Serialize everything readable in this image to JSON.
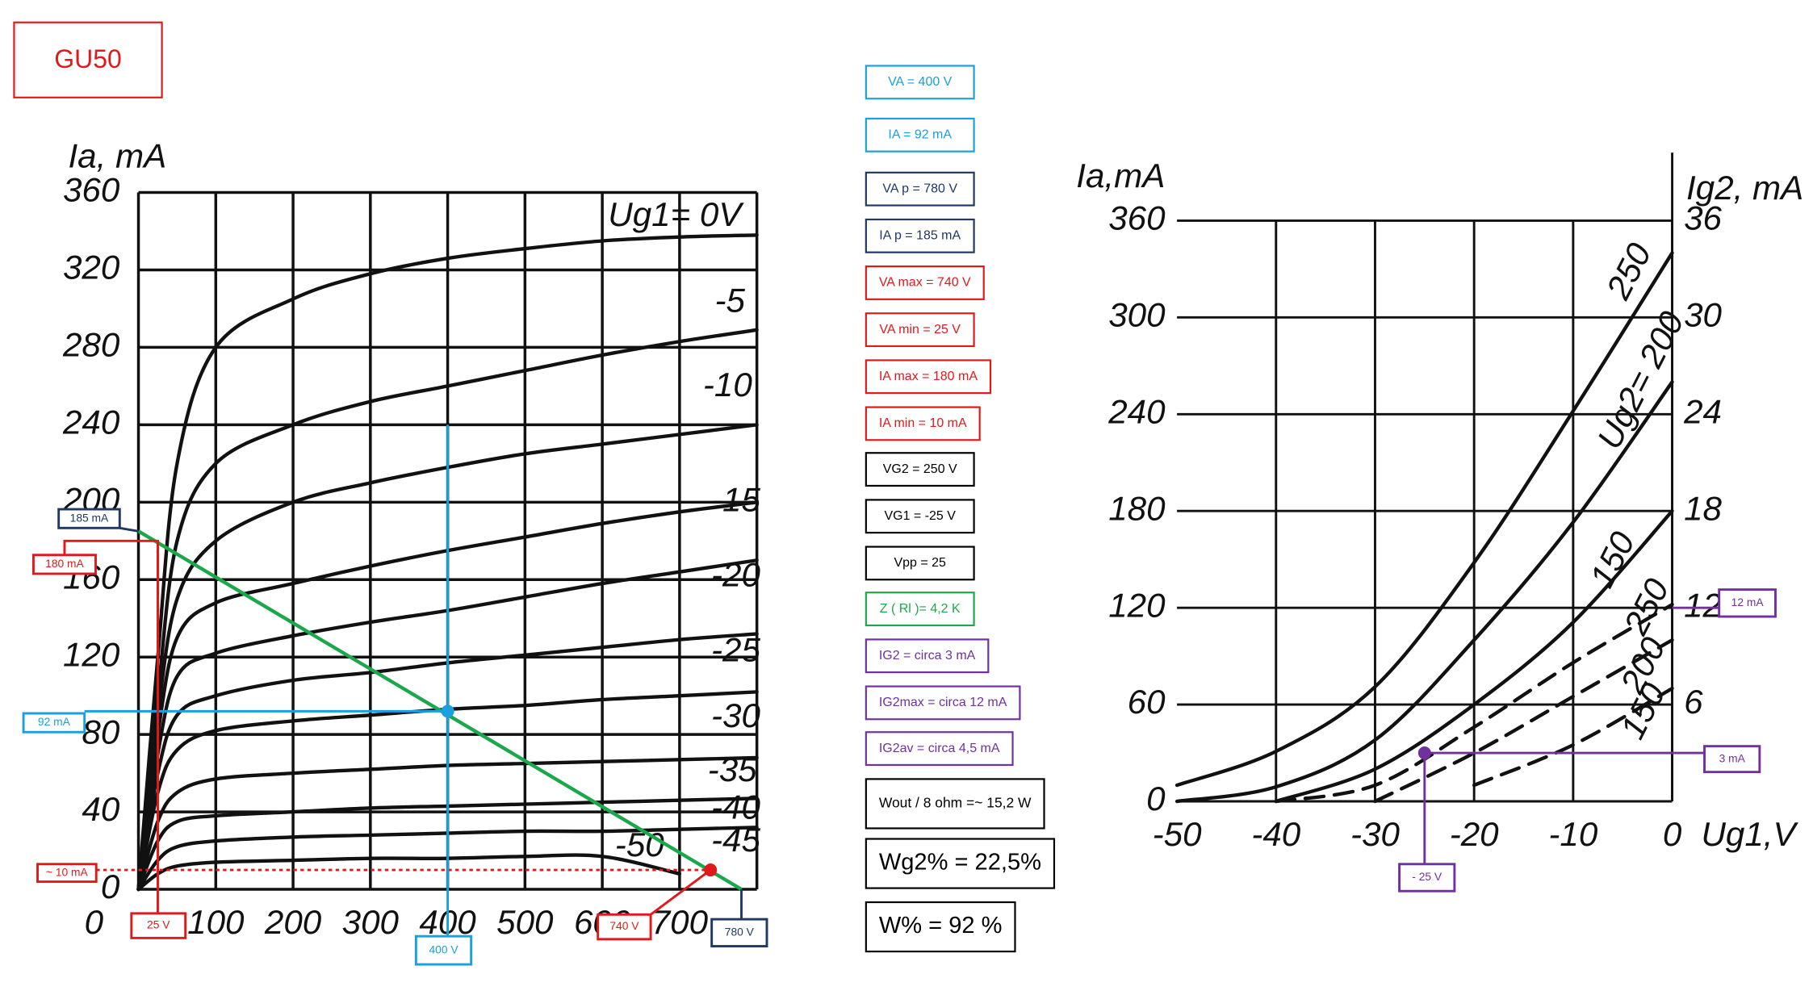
{
  "title": "GU50",
  "notes": [
    {
      "text": "VA = 400 V",
      "color": "#1aa0dc"
    },
    {
      "text": "IA = 92 mA",
      "color": "#1aa0dc"
    },
    {
      "text": "VA p = 780 V",
      "color": "#1f3864"
    },
    {
      "text": "IA p = 185 mA",
      "color": "#1f3864"
    },
    {
      "text": "VA max = 740 V",
      "color": "#e0191b"
    },
    {
      "text": "VA min = 25 V",
      "color": "#e0191b"
    },
    {
      "text": "IA max = 180 mA",
      "color": "#e0191b"
    },
    {
      "text": "IA min = 10 mA",
      "color": "#e0191b"
    },
    {
      "text": "VG2 = 250 V",
      "color": "#000000"
    },
    {
      "text": "VG1 = -25 V",
      "color": "#000000"
    },
    {
      "text": "Vpp = 25",
      "color": "#000000"
    },
    {
      "text": "Z ( Rl )= 4,2 K",
      "color": "#1aa84b"
    },
    {
      "text": "IG2 = circa 3 mA",
      "color": "#7030a0"
    },
    {
      "text": "IG2max = circa 12 mA",
      "color": "#7030a0"
    },
    {
      "text": "IG2av = circa 4,5 mA",
      "color": "#7030a0"
    },
    {
      "text": "Wout / 8 ohm =~ 15,2 W",
      "color": "#000000"
    },
    {
      "text": "Wg2% = 22,5%",
      "color": "#000000"
    },
    {
      "text": "W% = 92 %",
      "color": "#000000"
    }
  ],
  "chart_data": [
    {
      "type": "line",
      "y_label": "Ia, mA",
      "x": [
        0,
        25,
        50,
        100,
        200,
        300,
        400,
        500,
        600,
        700,
        800
      ],
      "xlim": [
        0,
        800
      ],
      "ylim": [
        0,
        360
      ],
      "xticks": [
        0,
        100,
        200,
        300,
        400,
        500,
        600,
        700
      ],
      "yticks": [
        0,
        40,
        80,
        120,
        160,
        200,
        240,
        280,
        320,
        360
      ],
      "grid": true,
      "series": [
        {
          "name": "Ug1= 0V",
          "color": "#111111",
          "values": [
            0,
            120,
            220,
            280,
            305,
            318,
            326,
            331,
            335,
            337,
            338
          ]
        },
        {
          "name": "-5",
          "color": "#111111",
          "values": [
            0,
            100,
            180,
            220,
            240,
            252,
            260,
            268,
            276,
            283,
            289
          ]
        },
        {
          "name": "-10",
          "color": "#111111",
          "values": [
            0,
            90,
            150,
            180,
            200,
            210,
            218,
            225,
            230,
            235,
            240
          ]
        },
        {
          "name": "-15",
          "color": "#111111",
          "values": [
            0,
            80,
            130,
            148,
            158,
            167,
            175,
            182,
            189,
            195,
            200
          ]
        },
        {
          "name": "-20",
          "color": "#111111",
          "values": [
            0,
            70,
            110,
            122,
            131,
            138,
            144,
            151,
            158,
            164,
            170
          ]
        },
        {
          "name": "-25",
          "color": "#111111",
          "values": [
            0,
            60,
            90,
            100,
            108,
            112,
            117,
            121,
            125,
            129,
            132
          ]
        },
        {
          "name": "-30",
          "color": "#111111",
          "values": [
            0,
            50,
            72,
            82,
            87,
            90,
            93,
            95,
            98,
            100,
            102
          ]
        },
        {
          "name": "-35",
          "color": "#111111",
          "values": [
            0,
            35,
            50,
            57,
            60,
            62,
            64,
            65,
            66,
            67,
            68
          ]
        },
        {
          "name": "-40",
          "color": "#111111",
          "values": [
            0,
            25,
            35,
            38,
            40,
            42,
            43,
            44,
            45,
            46,
            47
          ]
        },
        {
          "name": "-45",
          "color": "#111111",
          "values": [
            0,
            15,
            22,
            25,
            27,
            28,
            29,
            30,
            30,
            31,
            32
          ]
        },
        {
          "name": "-50",
          "color": "#111111",
          "values": [
            0,
            8,
            12,
            14,
            15,
            16,
            16,
            17,
            17,
            8,
            null
          ]
        }
      ],
      "load_line": {
        "color": "#1aa84b",
        "x": [
          0,
          780
        ],
        "values": [
          185,
          0
        ]
      },
      "markers": [
        {
          "x": 400,
          "y": 92,
          "color": "#1aa0dc"
        },
        {
          "x": 740,
          "y": 10,
          "color": "#e0191b"
        }
      ],
      "annotations": [
        {
          "text": "185  mA",
          "x": 0,
          "y": 185,
          "color": "#1f3864"
        },
        {
          "text": "180 mA",
          "x": 25,
          "y": 180,
          "color": "#e0191b"
        },
        {
          "text": "92  mA",
          "x": 400,
          "y": 92,
          "color": "#1aa0dc"
        },
        {
          "text": "~ 10 mA",
          "x": 740,
          "y": 10,
          "color": "#e0191b"
        },
        {
          "text": "25 V",
          "x": 25,
          "y": 180,
          "color": "#e0191b"
        },
        {
          "text": "400 V",
          "x": 400,
          "y": 240,
          "color": "#1aa0dc"
        },
        {
          "text": "740 V",
          "x": 740,
          "y": 10,
          "color": "#e0191b"
        },
        {
          "text": "780 V",
          "x": 780,
          "y": 0,
          "color": "#1f3864"
        }
      ]
    },
    {
      "type": "line",
      "y_label": "Ia,mA",
      "y2_label": "Ig2, mA",
      "x_label": "Ug1,V",
      "x": [
        -50,
        -40,
        -30,
        -20,
        -10,
        0
      ],
      "xlim": [
        -50,
        0
      ],
      "ylim": [
        0,
        360
      ],
      "y2lim": [
        0,
        36
      ],
      "xticks": [
        -50,
        -40,
        -30,
        -20,
        -10,
        0
      ],
      "yticks": [
        0,
        60,
        120,
        180,
        240,
        300,
        360
      ],
      "y2ticks": [
        6,
        12,
        18,
        24,
        30,
        36
      ],
      "grid": true,
      "series": [
        {
          "name": "250",
          "color": "#111111",
          "values": [
            10,
            31,
            71,
            148,
            242,
            340
          ]
        },
        {
          "name": "Ug2= 200",
          "color": "#111111",
          "values": [
            0,
            9,
            38,
            100,
            173,
            260
          ]
        },
        {
          "name": "150",
          "color": "#111111",
          "values": [
            null,
            0,
            20,
            60,
            111,
            180
          ]
        },
        {
          "name": "250",
          "color": "#111111",
          "axis": "y2",
          "dash": true,
          "values": [
            null,
            0,
            1,
            4.6,
            8.6,
            12.2
          ]
        },
        {
          "name": "200",
          "color": "#111111",
          "axis": "y2",
          "dash": true,
          "values": [
            null,
            null,
            0,
            3,
            6.5,
            10
          ]
        },
        {
          "name": "150",
          "color": "#111111",
          "axis": "y2",
          "dash": true,
          "values": [
            null,
            null,
            null,
            1,
            3.5,
            7
          ]
        }
      ],
      "markers": [
        {
          "x": -25,
          "y": 3,
          "axis": "y2",
          "color": "#7030a0"
        }
      ],
      "annotations": [
        {
          "text": "12 mA",
          "x": 0,
          "y": 12,
          "axis": "y2",
          "color": "#7030a0"
        },
        {
          "text": "3 mA",
          "x": -25,
          "y": 3,
          "axis": "y2",
          "color": "#7030a0"
        },
        {
          "text": "- 25 V",
          "x": -25,
          "y": 3,
          "axis": "y2",
          "color": "#7030a0"
        }
      ]
    }
  ]
}
